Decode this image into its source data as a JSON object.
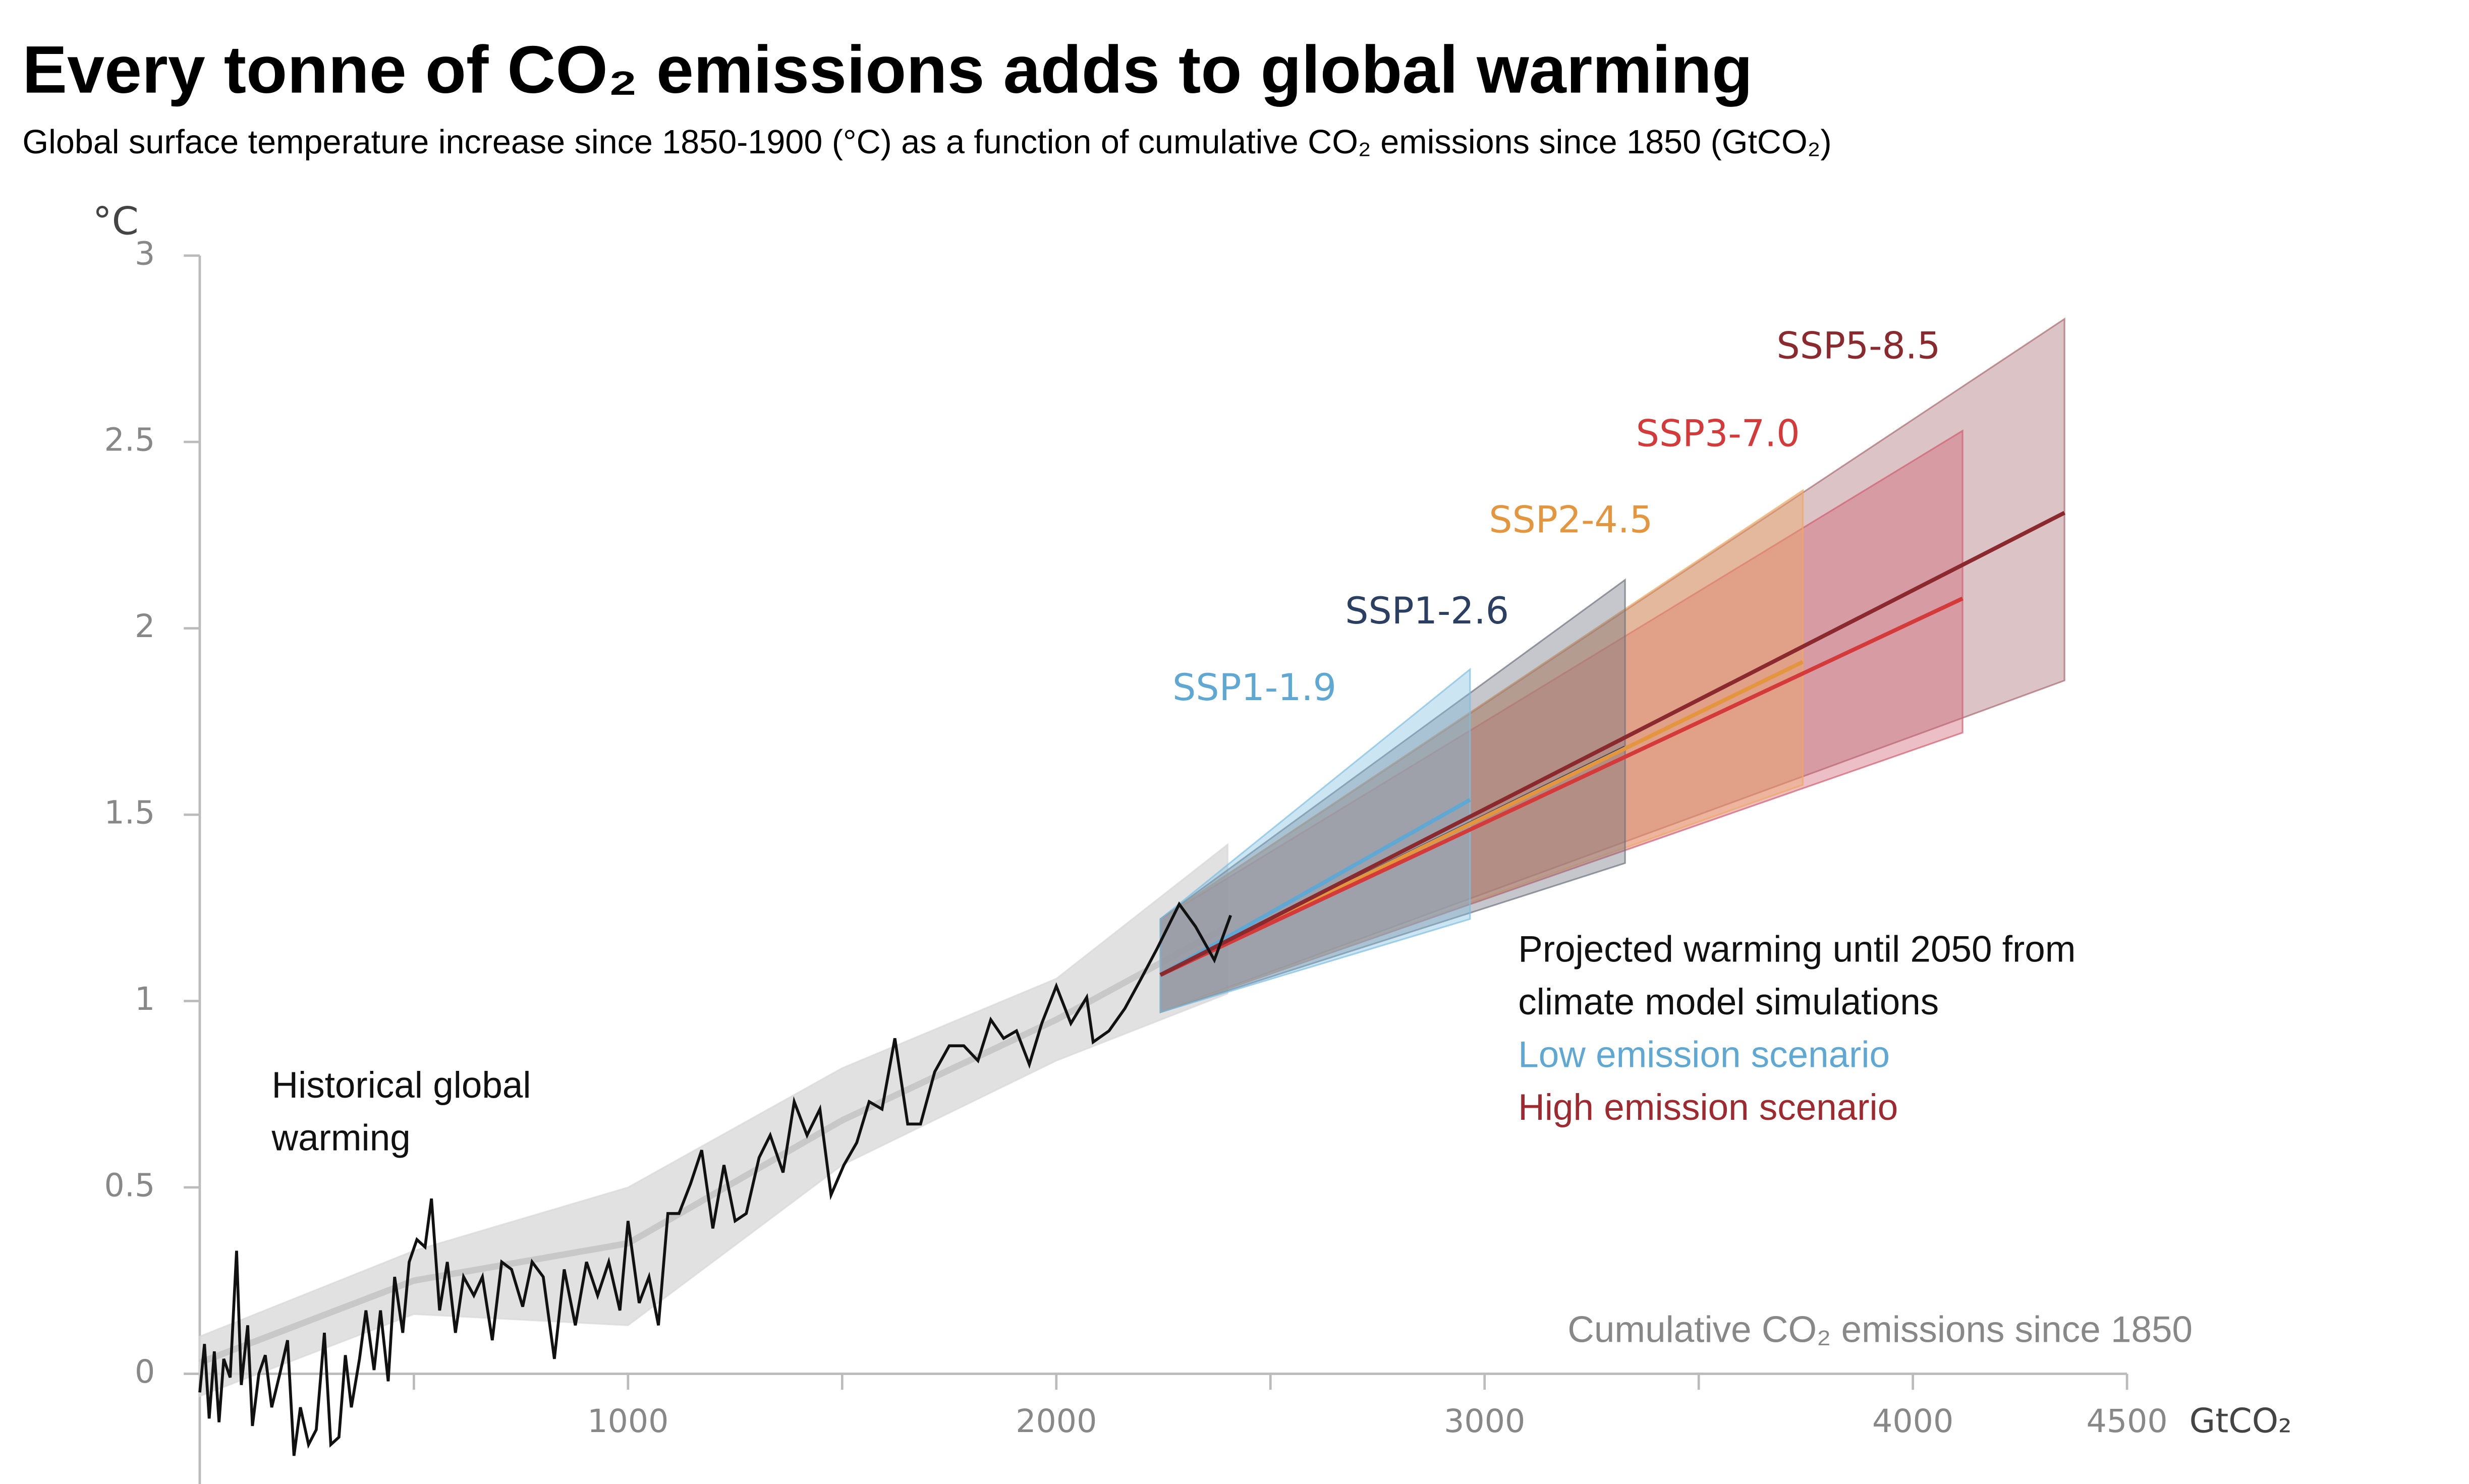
{
  "chart_data": {
    "type": "line",
    "title": "Every tonne of CO₂ emissions adds to global warming",
    "subtitle": "Global surface temperature increase since 1850-1900 (°C) as a function of cumulative CO₂ emissions since 1850 (GtCO₂)",
    "y_unit": "°C",
    "x_unit": "GtCO₂",
    "x_label": "Cumulative CO₂ emissions since 1850",
    "xlim": [
      0,
      4500
    ],
    "ylim": [
      -0.35,
      3
    ],
    "xticks": [
      1000,
      2000,
      3000,
      4000,
      4500
    ],
    "xminor_ticks": [
      500,
      1500,
      2500,
      3500
    ],
    "yticks": [
      0,
      0.5,
      1,
      1.5,
      2,
      2.5,
      3
    ],
    "historical_label": [
      "Historical global",
      "warming"
    ],
    "projection_label": [
      "Projected warming until 2050 from",
      "climate model simulations"
    ],
    "low_label": {
      "text": "Low emission scenario",
      "color": "#5fa8d3"
    },
    "high_label": {
      "text": "High emission scenario",
      "color": "#9e2a30"
    },
    "historical_band": {
      "color": "#d9d9d9",
      "line_color": "#c8c8c8",
      "x": [
        0,
        500,
        1000,
        1500,
        2000,
        2400
      ],
      "values": [
        0.03,
        0.25,
        0.35,
        0.68,
        0.95,
        1.2
      ],
      "lower": [
        -0.06,
        0.16,
        0.13,
        0.56,
        0.84,
        1.02
      ],
      "upper": [
        0.1,
        0.33,
        0.5,
        0.82,
        1.06,
        1.42
      ]
    },
    "historical": {
      "color": "#111111",
      "x": [
        0,
        11,
        22,
        34,
        45,
        56,
        71,
        86,
        97,
        112,
        123,
        138,
        153,
        168,
        187,
        205,
        220,
        235,
        254,
        272,
        291,
        306,
        325,
        340,
        354,
        373,
        388,
        407,
        422,
        440,
        455,
        474,
        489,
        507,
        526,
        541,
        560,
        578,
        597,
        616,
        640,
        660,
        683,
        705,
        728,
        754,
        776,
        802,
        828,
        851,
        877,
        903,
        929,
        955,
        981,
        1000,
        1026,
        1049,
        1071,
        1093,
        1119,
        1146,
        1172,
        1198,
        1224,
        1250,
        1276,
        1306,
        1332,
        1362,
        1388,
        1418,
        1448,
        1474,
        1504,
        1534,
        1563,
        1593,
        1623,
        1653,
        1683,
        1716,
        1750,
        1784,
        1817,
        1847,
        1877,
        1907,
        1937,
        1966,
        2000,
        2034,
        2071,
        2086,
        2123,
        2160,
        2198,
        2235,
        2287,
        2325,
        2369,
        2407
      ],
      "values": [
        -0.05,
        0.08,
        -0.12,
        0.06,
        -0.13,
        0.04,
        -0.01,
        0.33,
        -0.03,
        0.13,
        -0.14,
        0,
        0.05,
        -0.09,
        0,
        0.09,
        -0.22,
        -0.09,
        -0.19,
        -0.15,
        0.11,
        -0.19,
        -0.17,
        0.05,
        -0.09,
        0.04,
        0.17,
        0.01,
        0.17,
        -0.02,
        0.26,
        0.11,
        0.3,
        0.36,
        0.34,
        0.47,
        0.17,
        0.3,
        0.11,
        0.26,
        0.21,
        0.26,
        0.09,
        0.3,
        0.28,
        0.18,
        0.3,
        0.26,
        0.04,
        0.28,
        0.13,
        0.3,
        0.21,
        0.3,
        0.17,
        0.41,
        0.19,
        0.26,
        0.13,
        0.43,
        0.43,
        0.51,
        0.6,
        0.39,
        0.56,
        0.41,
        0.43,
        0.58,
        0.64,
        0.54,
        0.73,
        0.64,
        0.71,
        0.48,
        0.56,
        0.62,
        0.73,
        0.71,
        0.9,
        0.67,
        0.67,
        0.81,
        0.88,
        0.88,
        0.84,
        0.95,
        0.9,
        0.92,
        0.83,
        0.94,
        1.04,
        0.94,
        1.01,
        0.89,
        0.92,
        0.98,
        1.06,
        1.14,
        1.26,
        1.2,
        1.11,
        1.23
      ]
    },
    "series": [
      {
        "name": "SSP1-1.9",
        "color": "#5fa8d3",
        "band_color": "#7fbfe0",
        "x": [
          2243,
          2966
        ],
        "values": [
          1.07,
          1.54
        ],
        "lower": [
          0.97,
          1.22
        ],
        "upper": [
          1.22,
          1.89
        ]
      },
      {
        "name": "SSP1-2.6",
        "color": "#2b3f63",
        "band_color": "#6e7480",
        "x": [
          2243,
          3328
        ],
        "values": [
          1.07,
          1.68
        ],
        "lower": [
          0.97,
          1.37
        ],
        "upper": [
          1.22,
          2.13
        ]
      },
      {
        "name": "SSP2-4.5",
        "color": "#e3963e",
        "band_color": "#f0a860",
        "x": [
          2243,
          3743
        ],
        "values": [
          1.07,
          1.91
        ],
        "lower": [
          0.97,
          1.58
        ],
        "upper": [
          1.22,
          2.37
        ]
      },
      {
        "name": "SSP3-7.0",
        "color": "#d43a3a",
        "band_color": "#d06070",
        "x": [
          2243,
          4116
        ],
        "values": [
          1.07,
          2.08
        ],
        "lower": [
          0.97,
          1.72
        ],
        "upper": [
          1.22,
          2.53
        ]
      },
      {
        "name": "SSP5-8.5",
        "color": "#8b2a2e",
        "band_color": "#a86a70",
        "x": [
          2243,
          4354
        ],
        "values": [
          1.07,
          2.31
        ],
        "lower": [
          0.97,
          1.86
        ],
        "upper": [
          1.22,
          2.83
        ]
      }
    ]
  }
}
